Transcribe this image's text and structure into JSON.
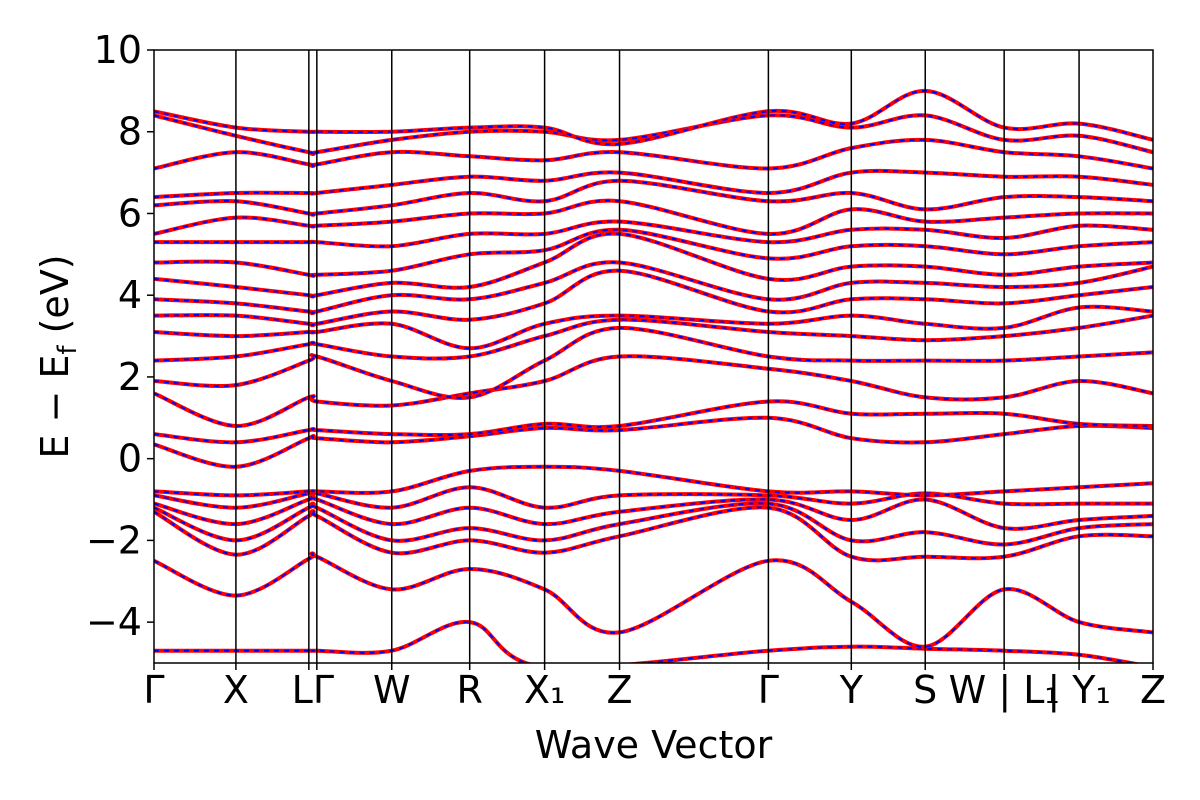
{
  "chart_data": {
    "type": "line",
    "title": "",
    "xlabel": "Wave Vector",
    "ylabel": "E − E_f (eV)",
    "ylabel_main": "E − E",
    "ylabel_sub": "f",
    "ylabel_tail": " (eV)",
    "ylim": [
      -5,
      10
    ],
    "yticks": [
      -4,
      -2,
      0,
      2,
      4,
      6,
      8,
      10
    ],
    "ytick_labels": [
      "−4",
      "−2",
      "0",
      "2",
      "4",
      "6",
      "8",
      "10"
    ],
    "grid": false,
    "legend": "none",
    "x_range": [
      0,
      1
    ],
    "kpoints": [
      {
        "label": "Γ",
        "x": 0.0
      },
      {
        "label": "X",
        "x": 0.082
      },
      {
        "label": "L",
        "x": 0.155
      },
      {
        "label": "Γ",
        "x": 0.163
      },
      {
        "label": "W",
        "x": 0.238
      },
      {
        "label": "R",
        "x": 0.316
      },
      {
        "label": "X₁",
        "x": 0.391
      },
      {
        "label": "Z",
        "x": 0.466
      },
      {
        "label": "Γ",
        "x": 0.615
      },
      {
        "label": "Y",
        "x": 0.698
      },
      {
        "label": "S",
        "x": 0.772
      },
      {
        "label": "W | L₁",
        "x": 0.851
      },
      {
        "label": "Y₁",
        "x": 0.926
      },
      {
        "label": "Z",
        "x": 1.0
      }
    ],
    "xtick_display": [
      {
        "text": "Γ",
        "x": 0.0
      },
      {
        "text": "X",
        "x": 0.082
      },
      {
        "text": "LΓ",
        "x": 0.159
      },
      {
        "text": "W",
        "x": 0.238
      },
      {
        "text": "R",
        "x": 0.316
      },
      {
        "text": "X₁",
        "x": 0.391
      },
      {
        "text": "Z",
        "x": 0.466
      },
      {
        "text": "Γ",
        "x": 0.615
      },
      {
        "text": "Y",
        "x": 0.698
      },
      {
        "text": "S",
        "x": 0.772
      },
      {
        "text": "W | L₁",
        "x": 0.851
      },
      {
        "text": "| Y₁",
        "x": 0.926
      },
      {
        "text": "Z",
        "x": 1.0
      }
    ],
    "series": [
      {
        "style": "solid",
        "color": "#ff0000"
      },
      {
        "style": "dashed",
        "color": "#0000ff"
      }
    ],
    "bands": [
      {
        "y": [
          -4.7,
          -4.7,
          -4.7,
          -4.7,
          -4.7,
          -4.0,
          -5.1,
          null,
          -4.7,
          -4.6,
          -4.65,
          -4.7,
          -4.8,
          -5.1
        ]
      },
      {
        "y": [
          -2.5,
          -3.35,
          -2.45,
          -2.4,
          -3.2,
          -2.7,
          -3.2,
          -4.25,
          -2.5,
          -3.5,
          -4.6,
          -3.2,
          -4.0,
          -4.25
        ]
      },
      {
        "y": [
          -1.3,
          -2.35,
          -1.4,
          -1.4,
          -2.3,
          -2.0,
          -2.3,
          -1.9,
          -1.2,
          -2.4,
          -2.4,
          -2.4,
          -1.9,
          -1.9
        ]
      },
      {
        "y": [
          -1.2,
          -2.0,
          -1.2,
          -1.2,
          -2.0,
          -1.7,
          -2.0,
          -1.6,
          -1.1,
          -2.0,
          -1.8,
          -2.1,
          -1.7,
          -1.6
        ]
      },
      {
        "y": [
          -1.1,
          -1.6,
          -1.0,
          -1.0,
          -1.6,
          -1.2,
          -1.6,
          -1.3,
          -1.0,
          -1.5,
          -1.0,
          -1.7,
          -1.5,
          -1.4
        ]
      },
      {
        "y": [
          -0.9,
          -1.2,
          -0.85,
          -0.85,
          -1.2,
          -0.7,
          -1.2,
          -0.9,
          -0.9,
          -1.1,
          -0.85,
          -1.1,
          -1.1,
          -1.1
        ]
      },
      {
        "y": [
          -0.8,
          -0.9,
          -0.8,
          -0.8,
          -0.8,
          -0.3,
          -0.2,
          -0.3,
          -0.8,
          -0.8,
          -0.9,
          -0.8,
          -0.7,
          -0.6
        ]
      },
      {
        "y": [
          0.35,
          -0.2,
          0.5,
          0.5,
          0.4,
          0.55,
          0.75,
          0.7,
          1.0,
          0.5,
          0.4,
          0.6,
          0.8,
          0.75
        ]
      },
      {
        "y": [
          0.6,
          0.4,
          0.7,
          0.7,
          0.6,
          0.6,
          0.85,
          0.8,
          1.4,
          1.1,
          1.1,
          1.1,
          0.85,
          0.8
        ]
      },
      {
        "y": [
          1.6,
          0.8,
          1.5,
          1.4,
          1.3,
          1.6,
          1.9,
          2.5,
          2.2,
          1.9,
          1.5,
          1.5,
          1.9,
          1.6
        ]
      },
      {
        "y": [
          1.9,
          1.8,
          2.4,
          2.5,
          1.9,
          1.5,
          2.4,
          3.2,
          2.5,
          2.4,
          2.4,
          2.4,
          2.5,
          2.6
        ]
      },
      {
        "y": [
          2.4,
          2.5,
          2.8,
          2.8,
          2.5,
          2.5,
          3.0,
          3.4,
          3.1,
          3.0,
          2.9,
          3.0,
          3.2,
          3.5
        ]
      },
      {
        "y": [
          3.1,
          3.0,
          3.1,
          3.1,
          3.3,
          2.7,
          3.3,
          3.5,
          3.3,
          3.5,
          3.3,
          3.2,
          3.7,
          3.6
        ]
      },
      {
        "y": [
          3.5,
          3.5,
          3.3,
          3.3,
          3.6,
          3.4,
          3.8,
          4.6,
          3.6,
          3.9,
          3.9,
          3.8,
          4.0,
          4.2
        ]
      },
      {
        "y": [
          3.9,
          3.8,
          3.6,
          3.6,
          4.0,
          3.9,
          4.3,
          4.8,
          3.9,
          4.3,
          4.3,
          4.2,
          4.3,
          4.7
        ]
      },
      {
        "y": [
          4.4,
          4.2,
          4.0,
          4.0,
          4.3,
          4.2,
          4.8,
          5.5,
          4.4,
          4.7,
          4.7,
          4.5,
          4.7,
          4.8
        ]
      },
      {
        "y": [
          4.8,
          4.8,
          4.5,
          4.5,
          4.6,
          5.0,
          5.1,
          5.6,
          4.9,
          5.2,
          5.2,
          5.0,
          5.2,
          5.3
        ]
      },
      {
        "y": [
          5.3,
          5.3,
          5.3,
          5.3,
          5.2,
          5.5,
          5.5,
          5.8,
          5.3,
          5.6,
          5.6,
          5.4,
          5.7,
          5.6
        ]
      },
      {
        "y": [
          5.5,
          5.9,
          5.7,
          5.7,
          5.8,
          6.0,
          6.0,
          6.3,
          5.5,
          6.1,
          5.8,
          5.9,
          6.0,
          6.0
        ]
      },
      {
        "y": [
          6.2,
          6.3,
          6.0,
          6.0,
          6.2,
          6.5,
          6.3,
          6.8,
          6.3,
          6.5,
          6.1,
          6.4,
          6.4,
          6.3
        ]
      },
      {
        "y": [
          6.4,
          6.5,
          6.5,
          6.5,
          6.7,
          6.9,
          6.8,
          7.0,
          6.5,
          7.0,
          7.0,
          6.9,
          6.9,
          6.7
        ]
      },
      {
        "y": [
          7.1,
          7.5,
          7.2,
          7.2,
          7.5,
          7.4,
          7.3,
          7.5,
          7.1,
          7.6,
          7.8,
          7.5,
          7.4,
          7.1
        ]
      },
      {
        "y": [
          8.4,
          7.9,
          7.5,
          7.5,
          7.8,
          8.0,
          8.0,
          7.8,
          8.4,
          8.1,
          8.4,
          7.8,
          7.9,
          7.5
        ]
      },
      {
        "y": [
          8.5,
          8.1,
          8.0,
          8.0,
          8.0,
          8.1,
          8.1,
          7.7,
          8.5,
          8.2,
          9.0,
          8.1,
          8.2,
          7.8
        ]
      }
    ]
  }
}
